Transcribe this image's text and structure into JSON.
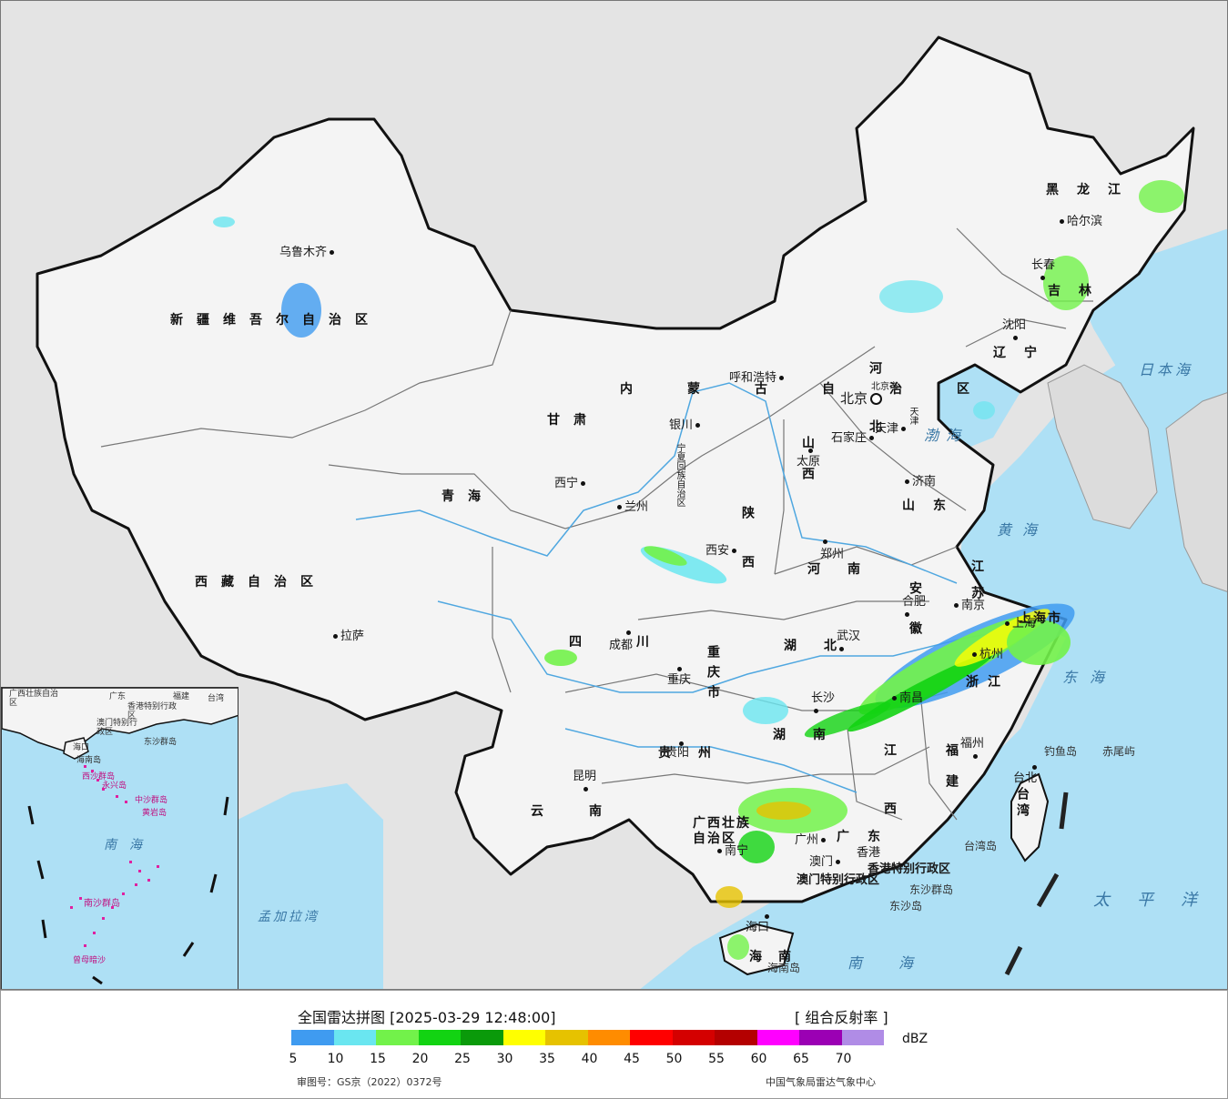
{
  "legend": {
    "title": "全国雷达拼图 [2025-03-29 12:48:00]",
    "product": "[ 组合反射率 ]",
    "unit": "dBZ",
    "ticks": [
      "5",
      "10",
      "15",
      "20",
      "25",
      "30",
      "35",
      "40",
      "45",
      "50",
      "55",
      "60",
      "65",
      "70"
    ],
    "colors": [
      "#3f9bf0",
      "#6ae6f0",
      "#72f24a",
      "#12d312",
      "#0a9a0a",
      "#ffff00",
      "#e6c200",
      "#ff8c00",
      "#ff0000",
      "#d40000",
      "#b40000",
      "#ff00ff",
      "#9b00b4",
      "#b08ce6"
    ],
    "approval_no": "审图号：GS京（2022）0372号",
    "producer": "中国气象局雷达气象中心"
  },
  "colors": {
    "sea": "#aee0f5",
    "land_outside": "#e4e4e4",
    "china_land": "#f4f4f4",
    "river": "#4fa7e0",
    "border": "#111111"
  },
  "map": {
    "regions": [
      "新疆维吾尔自治区",
      "西藏自治区",
      "青海",
      "甘肃",
      "内蒙古自治区",
      "黑龙江",
      "吉林",
      "辽宁",
      "河北",
      "山西",
      "陕西",
      "山东",
      "河南",
      "江苏",
      "安徽",
      "湖北",
      "四川",
      "重庆市",
      "贵州",
      "云南",
      "湖南",
      "江西",
      "浙江",
      "福建",
      "广东",
      "广西壮族自治区",
      "海南",
      "台湾",
      "宁夏回族自治区",
      "上海市",
      "香港特别行政区",
      "澳门特别行政区",
      "北京市",
      "天津"
    ],
    "cities": [
      "乌鲁木齐",
      "拉萨",
      "西宁",
      "兰州",
      "银川",
      "呼和浩特",
      "北京",
      "天津",
      "石家庄",
      "太原",
      "济南",
      "西安",
      "郑州",
      "南京",
      "合肥",
      "上海",
      "杭州",
      "武汉",
      "长沙",
      "南昌",
      "成都",
      "重庆",
      "贵阳",
      "昆明",
      "南宁",
      "广州",
      "香港",
      "澳门",
      "福州",
      "台北",
      "海口",
      "哈尔滨",
      "长春",
      "沈阳"
    ],
    "seas": [
      "日本海",
      "渤海",
      "黄海",
      "东海",
      "太平洋",
      "南海",
      "孟加拉湾"
    ],
    "islands": [
      "钓鱼岛",
      "赤尾屿",
      "台湾岛",
      "东沙群岛",
      "东沙岛",
      "海南岛"
    ],
    "inset": [
      "广西壮族自治区",
      "广东",
      "福建",
      "台湾",
      "香港特别行政区",
      "澳门特别行政区",
      "海口",
      "海南岛",
      "东沙群岛",
      "西沙群岛",
      "永兴岛",
      "中沙群岛",
      "黄岩岛",
      "南海",
      "南沙群岛",
      "曾母暗沙"
    ]
  }
}
